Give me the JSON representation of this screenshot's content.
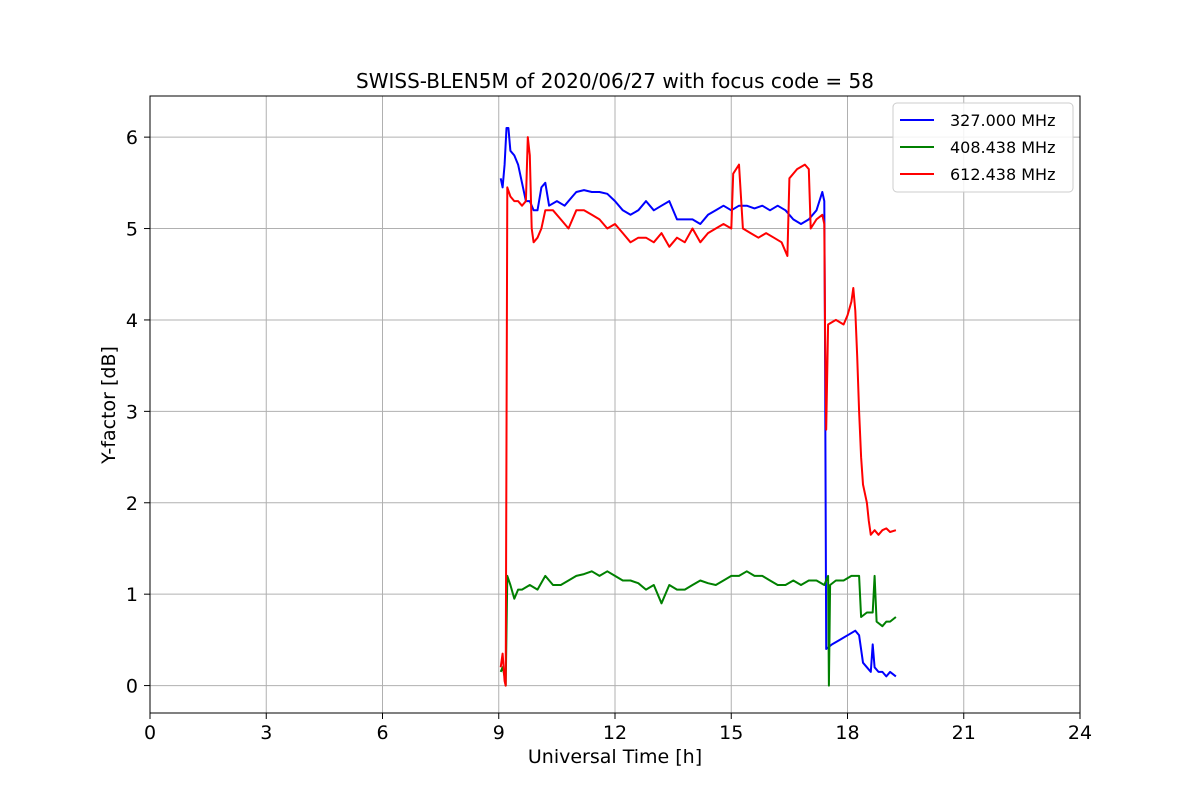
{
  "chart_data": {
    "type": "line",
    "title": "SWISS-BLEN5M of 2020/06/27 with focus code = 58",
    "xlabel": "Universal Time [h]",
    "ylabel": "Y-factor [dB]",
    "xlim": [
      0,
      24
    ],
    "ylim": [
      -0.3,
      6.45
    ],
    "xticks": [
      0,
      3,
      6,
      9,
      12,
      15,
      18,
      21,
      24
    ],
    "yticks": [
      0,
      1,
      2,
      3,
      4,
      5,
      6
    ],
    "grid": true,
    "legend_position": "top-right",
    "series": [
      {
        "name": "327.000 MHz",
        "color": "#0000ff",
        "points": [
          [
            9.05,
            5.55
          ],
          [
            9.1,
            5.45
          ],
          [
            9.15,
            5.7
          ],
          [
            9.2,
            6.1
          ],
          [
            9.25,
            6.1
          ],
          [
            9.3,
            5.85
          ],
          [
            9.4,
            5.8
          ],
          [
            9.5,
            5.7
          ],
          [
            9.6,
            5.5
          ],
          [
            9.7,
            5.3
          ],
          [
            9.8,
            5.3
          ],
          [
            9.9,
            5.2
          ],
          [
            10.0,
            5.2
          ],
          [
            10.1,
            5.45
          ],
          [
            10.2,
            5.5
          ],
          [
            10.3,
            5.25
          ],
          [
            10.5,
            5.3
          ],
          [
            10.7,
            5.25
          ],
          [
            10.9,
            5.35
          ],
          [
            11.0,
            5.4
          ],
          [
            11.2,
            5.42
          ],
          [
            11.4,
            5.4
          ],
          [
            11.6,
            5.4
          ],
          [
            11.8,
            5.38
          ],
          [
            12.0,
            5.3
          ],
          [
            12.2,
            5.2
          ],
          [
            12.4,
            5.15
          ],
          [
            12.6,
            5.2
          ],
          [
            12.8,
            5.3
          ],
          [
            13.0,
            5.2
          ],
          [
            13.2,
            5.25
          ],
          [
            13.4,
            5.3
          ],
          [
            13.6,
            5.1
          ],
          [
            13.8,
            5.1
          ],
          [
            14.0,
            5.1
          ],
          [
            14.2,
            5.05
          ],
          [
            14.4,
            5.15
          ],
          [
            14.6,
            5.2
          ],
          [
            14.8,
            5.25
          ],
          [
            15.0,
            5.2
          ],
          [
            15.2,
            5.25
          ],
          [
            15.4,
            5.25
          ],
          [
            15.6,
            5.22
          ],
          [
            15.8,
            5.25
          ],
          [
            16.0,
            5.2
          ],
          [
            16.2,
            5.25
          ],
          [
            16.4,
            5.2
          ],
          [
            16.6,
            5.1
          ],
          [
            16.8,
            5.05
          ],
          [
            17.0,
            5.1
          ],
          [
            17.2,
            5.2
          ],
          [
            17.35,
            5.4
          ],
          [
            17.4,
            5.3
          ],
          [
            17.42,
            3.8
          ],
          [
            17.45,
            0.4
          ],
          [
            17.6,
            0.45
          ],
          [
            17.8,
            0.5
          ],
          [
            18.0,
            0.55
          ],
          [
            18.2,
            0.6
          ],
          [
            18.3,
            0.55
          ],
          [
            18.4,
            0.25
          ],
          [
            18.5,
            0.2
          ],
          [
            18.6,
            0.15
          ],
          [
            18.65,
            0.45
          ],
          [
            18.7,
            0.2
          ],
          [
            18.8,
            0.15
          ],
          [
            18.9,
            0.15
          ],
          [
            19.0,
            0.1
          ],
          [
            19.1,
            0.15
          ],
          [
            19.25,
            0.1
          ]
        ]
      },
      {
        "name": "408.438 MHz",
        "color": "#008000",
        "points": [
          [
            9.05,
            0.15
          ],
          [
            9.1,
            0.2
          ],
          [
            9.15,
            0.1
          ],
          [
            9.18,
            0.0
          ],
          [
            9.22,
            1.2
          ],
          [
            9.3,
            1.1
          ],
          [
            9.4,
            0.95
          ],
          [
            9.5,
            1.05
          ],
          [
            9.6,
            1.05
          ],
          [
            9.8,
            1.1
          ],
          [
            10.0,
            1.05
          ],
          [
            10.2,
            1.2
          ],
          [
            10.4,
            1.1
          ],
          [
            10.6,
            1.1
          ],
          [
            10.8,
            1.15
          ],
          [
            11.0,
            1.2
          ],
          [
            11.2,
            1.22
          ],
          [
            11.4,
            1.25
          ],
          [
            11.6,
            1.2
          ],
          [
            11.8,
            1.25
          ],
          [
            12.0,
            1.2
          ],
          [
            12.2,
            1.15
          ],
          [
            12.4,
            1.15
          ],
          [
            12.6,
            1.12
          ],
          [
            12.8,
            1.05
          ],
          [
            13.0,
            1.1
          ],
          [
            13.2,
            0.9
          ],
          [
            13.4,
            1.1
          ],
          [
            13.6,
            1.05
          ],
          [
            13.8,
            1.05
          ],
          [
            14.0,
            1.1
          ],
          [
            14.2,
            1.15
          ],
          [
            14.4,
            1.12
          ],
          [
            14.6,
            1.1
          ],
          [
            14.8,
            1.15
          ],
          [
            15.0,
            1.2
          ],
          [
            15.2,
            1.2
          ],
          [
            15.4,
            1.25
          ],
          [
            15.6,
            1.2
          ],
          [
            15.8,
            1.2
          ],
          [
            16.0,
            1.15
          ],
          [
            16.2,
            1.1
          ],
          [
            16.4,
            1.1
          ],
          [
            16.6,
            1.15
          ],
          [
            16.8,
            1.1
          ],
          [
            17.0,
            1.15
          ],
          [
            17.2,
            1.15
          ],
          [
            17.4,
            1.1
          ],
          [
            17.5,
            1.2
          ],
          [
            17.52,
            0.0
          ],
          [
            17.55,
            1.1
          ],
          [
            17.7,
            1.15
          ],
          [
            17.9,
            1.15
          ],
          [
            18.1,
            1.2
          ],
          [
            18.3,
            1.2
          ],
          [
            18.35,
            0.75
          ],
          [
            18.5,
            0.8
          ],
          [
            18.65,
            0.8
          ],
          [
            18.7,
            1.2
          ],
          [
            18.75,
            0.7
          ],
          [
            18.9,
            0.65
          ],
          [
            19.0,
            0.7
          ],
          [
            19.1,
            0.7
          ],
          [
            19.25,
            0.75
          ]
        ]
      },
      {
        "name": "612.438 MHz",
        "color": "#ff0000",
        "points": [
          [
            9.05,
            0.2
          ],
          [
            9.1,
            0.35
          ],
          [
            9.15,
            0.05
          ],
          [
            9.18,
            0.0
          ],
          [
            9.22,
            5.45
          ],
          [
            9.3,
            5.35
          ],
          [
            9.4,
            5.3
          ],
          [
            9.5,
            5.3
          ],
          [
            9.6,
            5.25
          ],
          [
            9.7,
            5.3
          ],
          [
            9.75,
            6.0
          ],
          [
            9.8,
            5.8
          ],
          [
            9.85,
            5.0
          ],
          [
            9.9,
            4.85
          ],
          [
            10.0,
            4.9
          ],
          [
            10.1,
            5.0
          ],
          [
            10.2,
            5.2
          ],
          [
            10.4,
            5.2
          ],
          [
            10.6,
            5.1
          ],
          [
            10.8,
            5.0
          ],
          [
            11.0,
            5.2
          ],
          [
            11.2,
            5.2
          ],
          [
            11.4,
            5.15
          ],
          [
            11.6,
            5.1
          ],
          [
            11.8,
            5.0
          ],
          [
            12.0,
            5.05
          ],
          [
            12.2,
            4.95
          ],
          [
            12.4,
            4.85
          ],
          [
            12.6,
            4.9
          ],
          [
            12.8,
            4.9
          ],
          [
            13.0,
            4.85
          ],
          [
            13.2,
            4.95
          ],
          [
            13.4,
            4.8
          ],
          [
            13.6,
            4.9
          ],
          [
            13.8,
            4.85
          ],
          [
            14.0,
            5.0
          ],
          [
            14.2,
            4.85
          ],
          [
            14.4,
            4.95
          ],
          [
            14.6,
            5.0
          ],
          [
            14.8,
            5.05
          ],
          [
            15.0,
            5.0
          ],
          [
            15.05,
            5.6
          ],
          [
            15.2,
            5.7
          ],
          [
            15.3,
            5.0
          ],
          [
            15.5,
            4.95
          ],
          [
            15.7,
            4.9
          ],
          [
            15.9,
            4.95
          ],
          [
            16.1,
            4.9
          ],
          [
            16.3,
            4.85
          ],
          [
            16.45,
            4.7
          ],
          [
            16.5,
            5.55
          ],
          [
            16.7,
            5.65
          ],
          [
            16.9,
            5.7
          ],
          [
            17.0,
            5.65
          ],
          [
            17.05,
            5.0
          ],
          [
            17.2,
            5.1
          ],
          [
            17.35,
            5.15
          ],
          [
            17.4,
            5.05
          ],
          [
            17.42,
            3.95
          ],
          [
            17.45,
            2.8
          ],
          [
            17.5,
            3.95
          ],
          [
            17.7,
            4.0
          ],
          [
            17.9,
            3.95
          ],
          [
            18.0,
            4.05
          ],
          [
            18.1,
            4.2
          ],
          [
            18.15,
            4.35
          ],
          [
            18.2,
            4.1
          ],
          [
            18.25,
            3.6
          ],
          [
            18.3,
            3.0
          ],
          [
            18.35,
            2.5
          ],
          [
            18.4,
            2.2
          ],
          [
            18.5,
            2.0
          ],
          [
            18.55,
            1.8
          ],
          [
            18.6,
            1.65
          ],
          [
            18.7,
            1.7
          ],
          [
            18.8,
            1.65
          ],
          [
            18.9,
            1.7
          ],
          [
            19.0,
            1.72
          ],
          [
            19.1,
            1.68
          ],
          [
            19.25,
            1.7
          ]
        ]
      }
    ]
  }
}
